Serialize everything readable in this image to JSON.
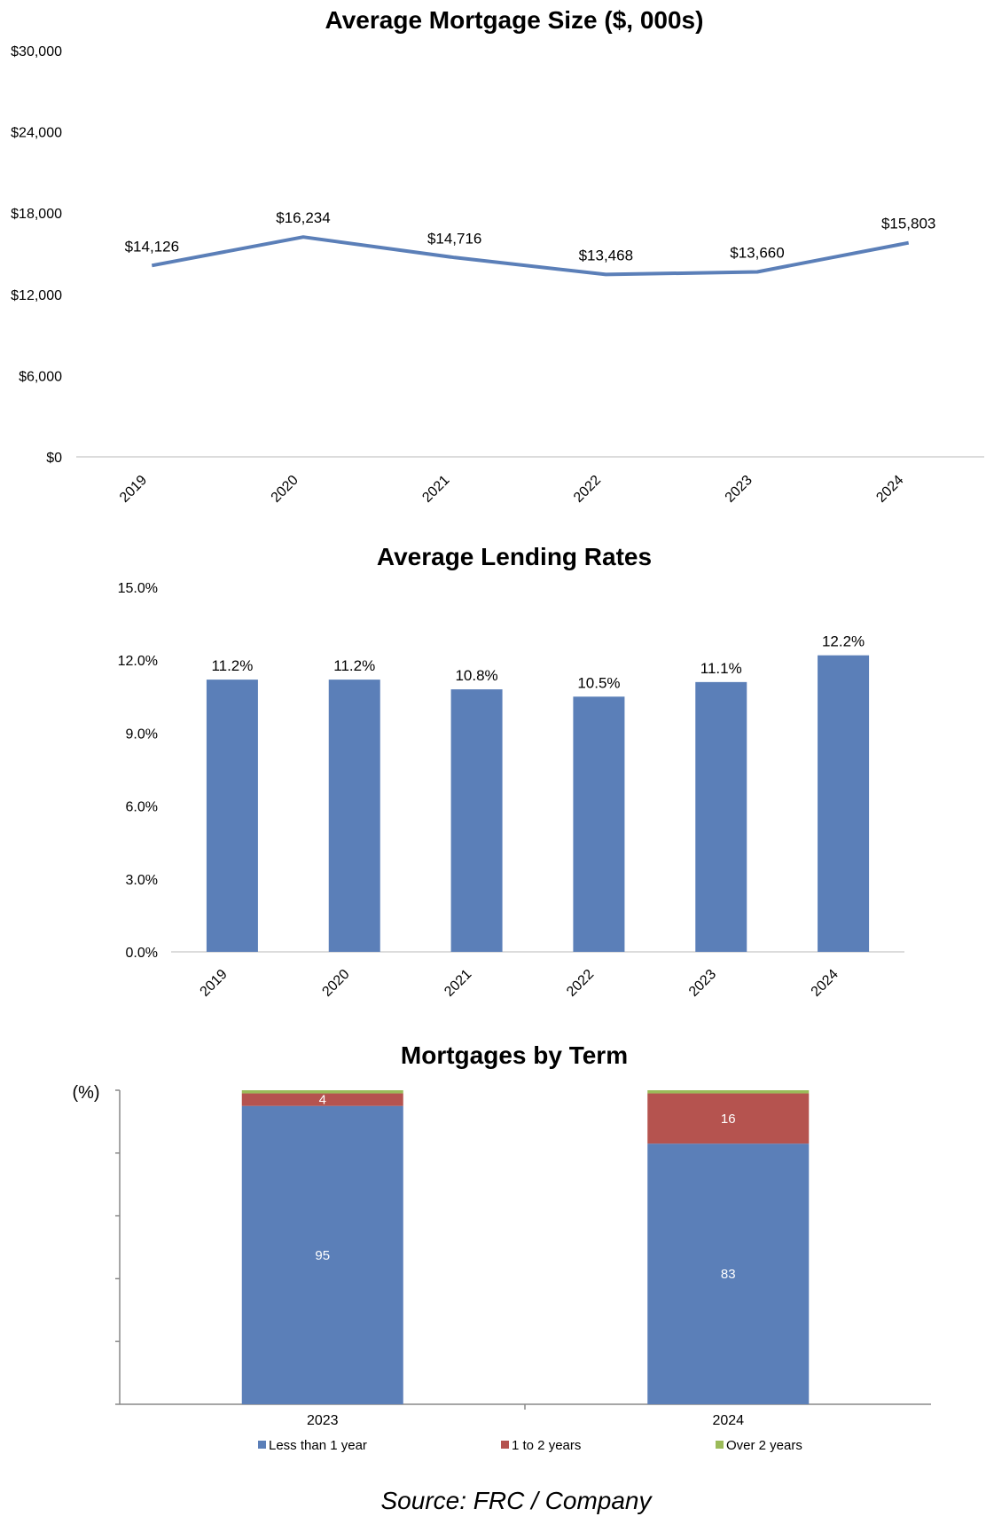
{
  "chart_data": [
    {
      "type": "line",
      "title": "Average Mortgage Size ($, 000s)",
      "categories": [
        "2019",
        "2020",
        "2021",
        "2022",
        "2023",
        "2024"
      ],
      "values": [
        14126,
        16234,
        14716,
        13468,
        13660,
        15803
      ],
      "data_labels": [
        "$14,126",
        "$16,234",
        "$14,716",
        "$13,468",
        "$13,660",
        "$15,803"
      ],
      "y_ticks": [
        "$0",
        "$6,000",
        "$12,000",
        "$18,000",
        "$24,000",
        "$30,000"
      ],
      "ylim": [
        0,
        30000
      ],
      "color": "#5b7fb8",
      "grid": false,
      "legend": "none"
    },
    {
      "type": "bar",
      "title": "Average Lending Rates",
      "categories": [
        "2019",
        "2020",
        "2021",
        "2022",
        "2023",
        "2024"
      ],
      "values": [
        11.2,
        11.2,
        10.8,
        10.5,
        11.1,
        12.2
      ],
      "data_labels": [
        "11.2%",
        "11.2%",
        "10.8%",
        "10.5%",
        "11.1%",
        "12.2%"
      ],
      "y_ticks": [
        "0.0%",
        "3.0%",
        "6.0%",
        "9.0%",
        "12.0%",
        "15.0%"
      ],
      "ylim": [
        0,
        15
      ],
      "color": "#5b7fb8",
      "grid": false,
      "legend": "none"
    },
    {
      "type": "bar",
      "stacked": true,
      "title": "Mortgages by Term",
      "ylabel": "(%)",
      "categories": [
        "2023",
        "2024"
      ],
      "ylim": [
        0,
        100
      ],
      "series": [
        {
          "name": "Less than 1 year",
          "values": [
            95,
            83
          ],
          "labels": [
            "95",
            "83"
          ],
          "color": "#5b7fb8"
        },
        {
          "name": "1 to 2 years",
          "values": [
            4,
            16
          ],
          "labels": [
            "4",
            "16"
          ],
          "color": "#b5534f"
        },
        {
          "name": "Over 2 years",
          "values": [
            1,
            1
          ],
          "labels": [
            "",
            ""
          ],
          "color": "#9bbb59"
        }
      ],
      "legend": "bottom"
    }
  ],
  "source": "Source: FRC / Company"
}
